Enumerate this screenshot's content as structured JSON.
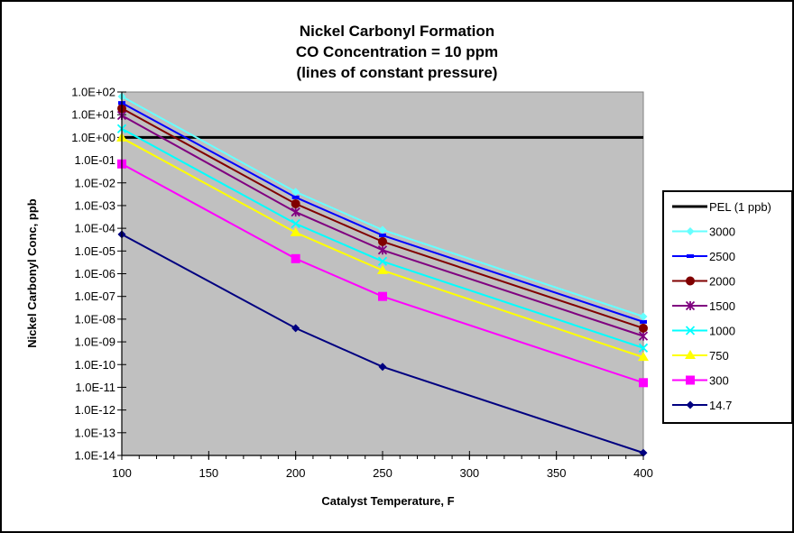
{
  "chart_data": {
    "type": "line",
    "title": [
      "Nickel Carbonyl Formation",
      "CO Concentration = 10 ppm",
      "(lines of constant pressure)"
    ],
    "xlabel": "Catalyst Temperature, F",
    "ylabel": "Nickel Carbonyl Conc, ppb",
    "xlim": [
      100,
      400
    ],
    "x_ticks": [
      "100",
      "150",
      "200",
      "250",
      "300",
      "350",
      "400"
    ],
    "x_tick_values": [
      100,
      150,
      200,
      250,
      300,
      350,
      400
    ],
    "x_minor_step": 10,
    "y_scale": "log",
    "ylim": [
      1e-14,
      100
    ],
    "y_ticks": [
      "1.0E+02",
      "1.0E+01",
      "1.0E+00",
      "1.0E-01",
      "1.0E-02",
      "1.0E-03",
      "1.0E-04",
      "1.0E-05",
      "1.0E-06",
      "1.0E-07",
      "1.0E-08",
      "1.0E-09",
      "1.0E-10",
      "1.0E-11",
      "1.0E-12",
      "1.0E-13",
      "1.0E-14"
    ],
    "y_tick_exponents": [
      2,
      1,
      0,
      -1,
      -2,
      -3,
      -4,
      -5,
      -6,
      -7,
      -8,
      -9,
      -10,
      -11,
      -12,
      -13,
      -14
    ],
    "plot_background": "#c0c0c0",
    "grid": false,
    "legend_position": "right",
    "reference_line": {
      "name": "PEL (1 ppb)",
      "y": 1,
      "color": "#000000"
    },
    "x": [
      100,
      200,
      250,
      400
    ],
    "series": [
      {
        "name": "3000",
        "color": "#66ffff",
        "marker": "diamond",
        "values": [
          63,
          0.004,
          8.5e-05,
          1.3e-08
        ]
      },
      {
        "name": "2500",
        "color": "#0000ff",
        "marker": "dash",
        "values": [
          33,
          0.0023,
          4.9e-05,
          7.6e-09
        ]
      },
      {
        "name": "2000",
        "color": "#800000",
        "marker": "circle",
        "values": [
          19,
          0.0012,
          2.6e-05,
          4e-09
        ]
      },
      {
        "name": "1500",
        "color": "#800080",
        "marker": "star",
        "values": [
          9.3,
          0.00052,
          1.1e-05,
          1.8e-09
        ]
      },
      {
        "name": "1000",
        "color": "#00ffff",
        "marker": "x",
        "values": [
          2.4,
          0.00016,
          3.5e-06,
          5.4e-10
        ]
      },
      {
        "name": "750",
        "color": "#ffff00",
        "marker": "triangle",
        "values": [
          0.95,
          6.5e-05,
          1.4e-06,
          2.1e-10
        ]
      },
      {
        "name": "300",
        "color": "#ff00ff",
        "marker": "square",
        "values": [
          0.068,
          4.6e-06,
          1e-07,
          1.6e-11
        ]
      },
      {
        "name": "14.7",
        "color": "#000080",
        "marker": "diamond",
        "values": [
          5.4e-05,
          4e-09,
          8e-11,
          1.3e-14
        ]
      }
    ]
  }
}
